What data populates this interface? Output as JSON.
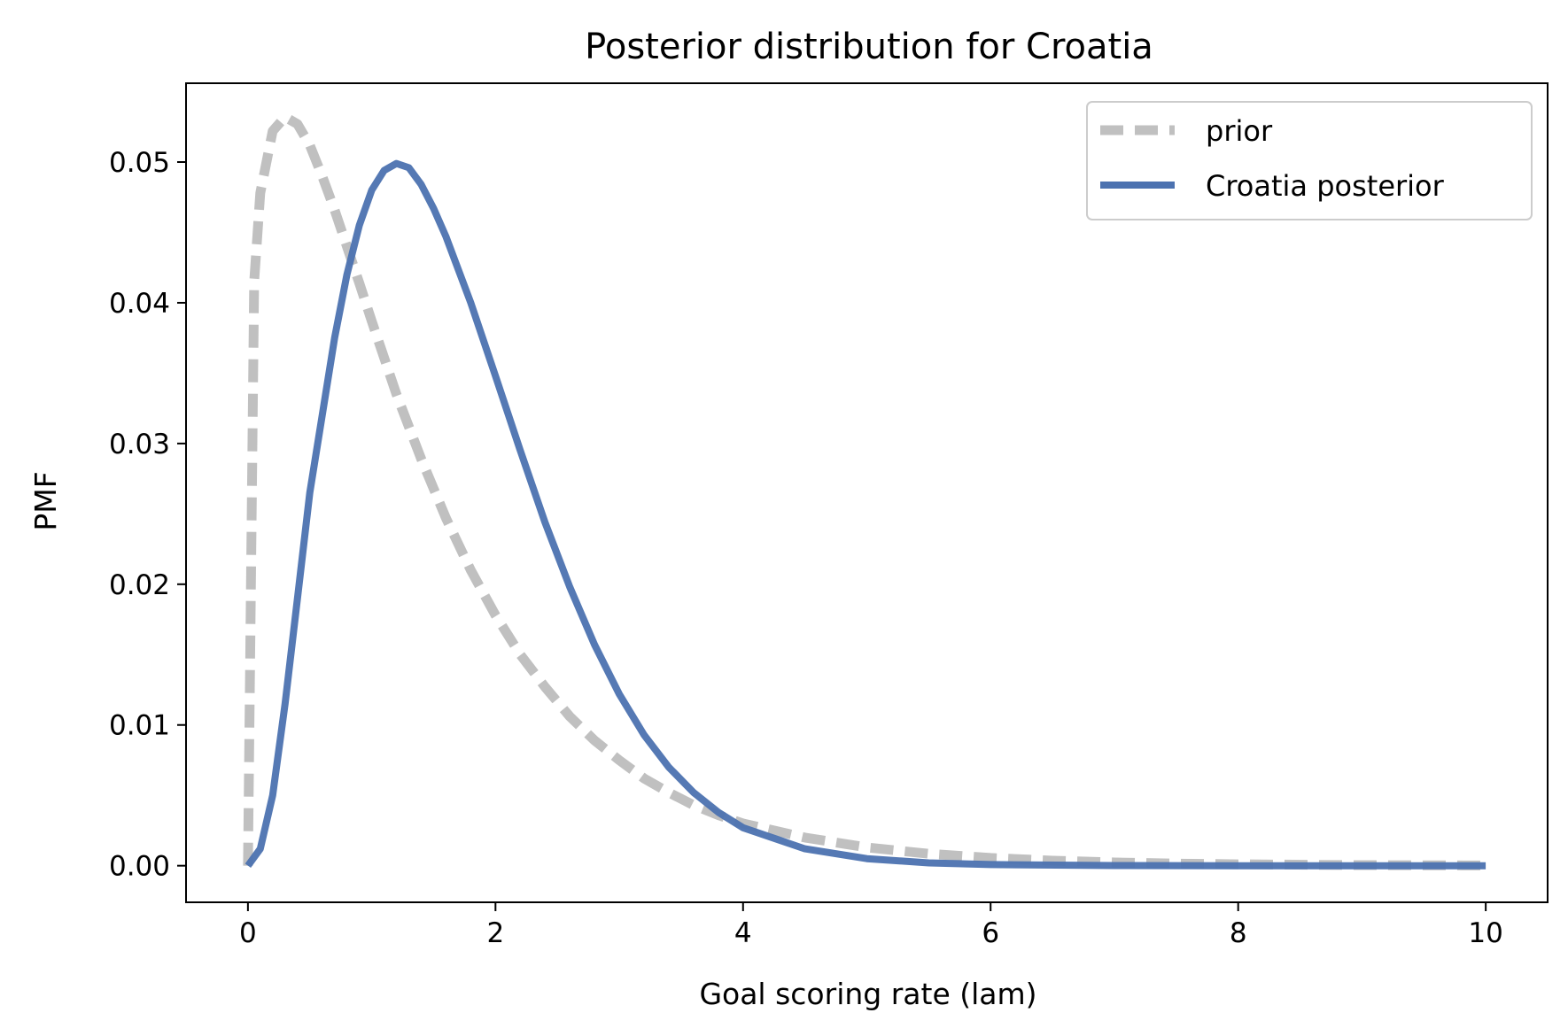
{
  "chart_data": {
    "type": "line",
    "title": "Posterior distribution for Croatia",
    "xlabel": "Goal scoring rate (lam)",
    "ylabel": "PMF",
    "xlim": [
      -0.5,
      10.5
    ],
    "ylim": [
      -0.0026,
      0.0556
    ],
    "x_ticks": [
      0,
      2,
      4,
      6,
      8,
      10
    ],
    "x_tick_labels": [
      "0",
      "2",
      "4",
      "6",
      "8",
      "10"
    ],
    "y_ticks": [
      0.0,
      0.01,
      0.02,
      0.03,
      0.04,
      0.05
    ],
    "y_tick_labels": [
      "0.00",
      "0.01",
      "0.02",
      "0.03",
      "0.04",
      "0.05"
    ],
    "grid": false,
    "legend_position": "top-right",
    "series": [
      {
        "name": "prior",
        "color": "#c0c0c0",
        "style": "dashed",
        "x": [
          0,
          0.05,
          0.1,
          0.2,
          0.3,
          0.4,
          0.5,
          0.6,
          0.7,
          0.8,
          0.9,
          1.0,
          1.2,
          1.4,
          1.6,
          1.8,
          2.0,
          2.2,
          2.4,
          2.6,
          2.8,
          3.0,
          3.2,
          3.4,
          3.6,
          3.8,
          4.0,
          4.5,
          5.0,
          5.5,
          6.0,
          6.5,
          7.0,
          7.5,
          8.0,
          9.0,
          10.0
        ],
        "y": [
          0.0,
          0.0415,
          0.0478,
          0.0522,
          0.0532,
          0.0527,
          0.0512,
          0.049,
          0.0466,
          0.044,
          0.0414,
          0.0387,
          0.0335,
          0.0289,
          0.0247,
          0.021,
          0.0178,
          0.015,
          0.0127,
          0.0106,
          0.0089,
          0.0075,
          0.0062,
          0.0052,
          0.0043,
          0.0036,
          0.003,
          0.002,
          0.0013,
          0.00085,
          0.00055,
          0.00036,
          0.00023,
          0.00015,
          0.0001,
          4e-05,
          2e-05
        ]
      },
      {
        "name": "Croatia posterior",
        "color": "#4c72b0",
        "style": "solid",
        "x": [
          0,
          0.1,
          0.2,
          0.3,
          0.4,
          0.5,
          0.6,
          0.7,
          0.8,
          0.9,
          1.0,
          1.1,
          1.2,
          1.3,
          1.4,
          1.5,
          1.6,
          1.8,
          2.0,
          2.2,
          2.4,
          2.6,
          2.8,
          3.0,
          3.2,
          3.4,
          3.6,
          3.8,
          4.0,
          4.5,
          5.0,
          5.5,
          6.0,
          7.0,
          8.0,
          9.0,
          10.0
        ],
        "y": [
          0.0,
          0.0012,
          0.005,
          0.0115,
          0.019,
          0.0265,
          0.032,
          0.0375,
          0.042,
          0.0455,
          0.048,
          0.0494,
          0.0499,
          0.0496,
          0.0484,
          0.0467,
          0.0447,
          0.04,
          0.0348,
          0.0295,
          0.0244,
          0.0198,
          0.0157,
          0.0122,
          0.0093,
          0.007,
          0.0052,
          0.0038,
          0.0027,
          0.0012,
          0.0005,
          0.0002,
          8e-05,
          1e-05,
          0.0,
          0.0,
          0.0
        ]
      }
    ]
  }
}
